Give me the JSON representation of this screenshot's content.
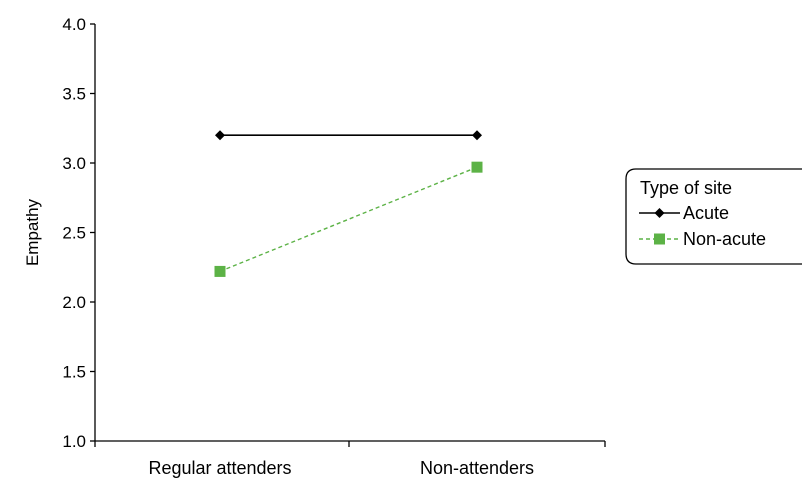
{
  "chart_data": {
    "type": "line",
    "categories": [
      "Regular attenders",
      "Non-attenders"
    ],
    "ylabel": "Empathy",
    "xlabel": "",
    "ylim": [
      1.0,
      4.0
    ],
    "yticks": [
      "1.0",
      "1.5",
      "2.0",
      "2.5",
      "3.0",
      "3.5",
      "4.0"
    ],
    "grid": false,
    "legend": {
      "title": "Type of site",
      "placement": "right"
    },
    "series": [
      {
        "name": "Acute",
        "values": [
          3.2,
          3.2
        ],
        "color": "#000000",
        "marker": "diamond",
        "line": "solid"
      },
      {
        "name": "Non-acute",
        "values": [
          2.22,
          2.97
        ],
        "color": "#5cb246",
        "marker": "square",
        "line": "dashed"
      }
    ]
  }
}
